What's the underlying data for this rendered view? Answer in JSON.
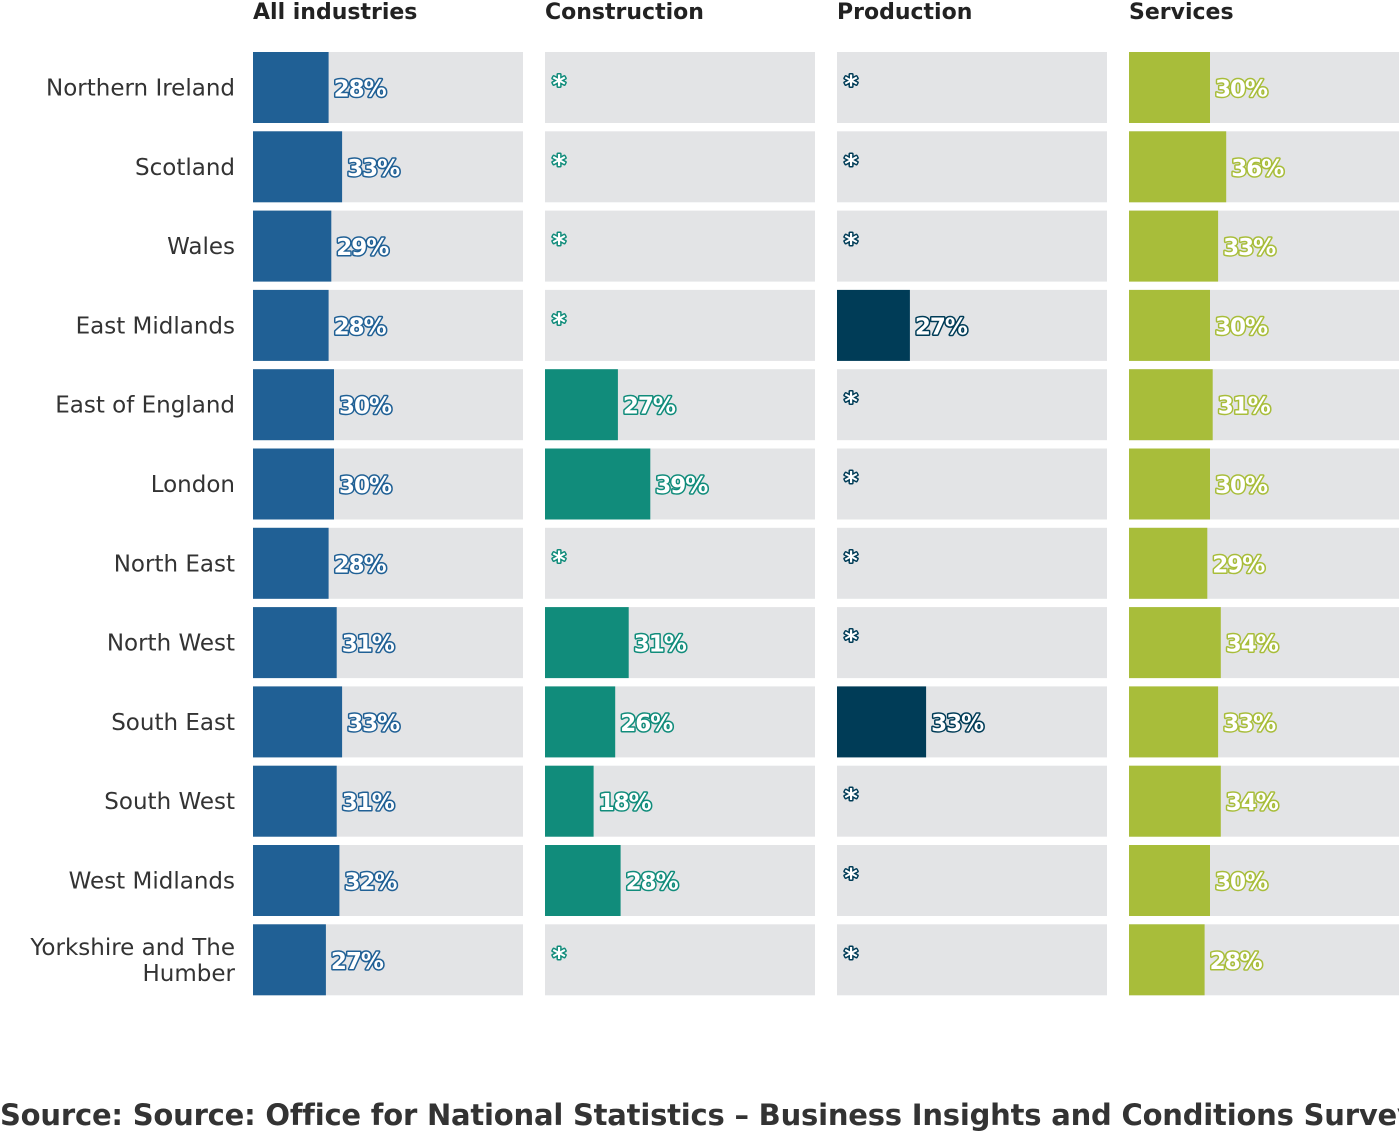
{
  "chart_data": {
    "type": "bar",
    "orientation": "horizontal",
    "layout": "small-multiples",
    "categories": [
      "Northern Ireland",
      "Scotland",
      "Wales",
      "East Midlands",
      "East of England",
      "London",
      "North East",
      "North West",
      "South East",
      "South West",
      "West Midlands",
      "Yorkshire and The Humber"
    ],
    "xlim": [
      0,
      100
    ],
    "grid": false,
    "legend": "none",
    "suppressed_marker": "*",
    "series": [
      {
        "name": "All industries",
        "color": "#206095",
        "values": [
          28,
          33,
          29,
          28,
          30,
          30,
          28,
          31,
          33,
          31,
          32,
          27
        ],
        "labels": [
          "28%",
          "33%",
          "29%",
          "28%",
          "30%",
          "30%",
          "28%",
          "31%",
          "33%",
          "31%",
          "32%",
          "27%"
        ]
      },
      {
        "name": "Construction",
        "color": "#118c7b",
        "values": [
          null,
          null,
          null,
          null,
          27,
          39,
          null,
          31,
          26,
          18,
          28,
          null
        ],
        "labels": [
          "*",
          "*",
          "*",
          "*",
          "27%",
          "39%",
          "*",
          "31%",
          "26%",
          "18%",
          "28%",
          "*"
        ]
      },
      {
        "name": "Production",
        "color": "#003c57",
        "values": [
          null,
          null,
          null,
          27,
          null,
          null,
          null,
          null,
          33,
          null,
          null,
          null
        ],
        "labels": [
          "*",
          "*",
          "*",
          "27%",
          "*",
          "*",
          "*",
          "*",
          "33%",
          "*",
          "*",
          "*"
        ]
      },
      {
        "name": "Services",
        "color": "#a8bd3a",
        "values": [
          30,
          36,
          33,
          30,
          31,
          30,
          29,
          34,
          33,
          34,
          30,
          28
        ],
        "labels": [
          "30%",
          "36%",
          "33%",
          "30%",
          "31%",
          "30%",
          "29%",
          "34%",
          "33%",
          "34%",
          "30%",
          "28%"
        ]
      }
    ]
  },
  "footer": {
    "source": "Source: Source: Office for National Statistics – Business Insights and Conditions Survey"
  },
  "colors": {
    "track": "#e3e4e6",
    "label_text": "#333333",
    "header_text": "#222222"
  }
}
